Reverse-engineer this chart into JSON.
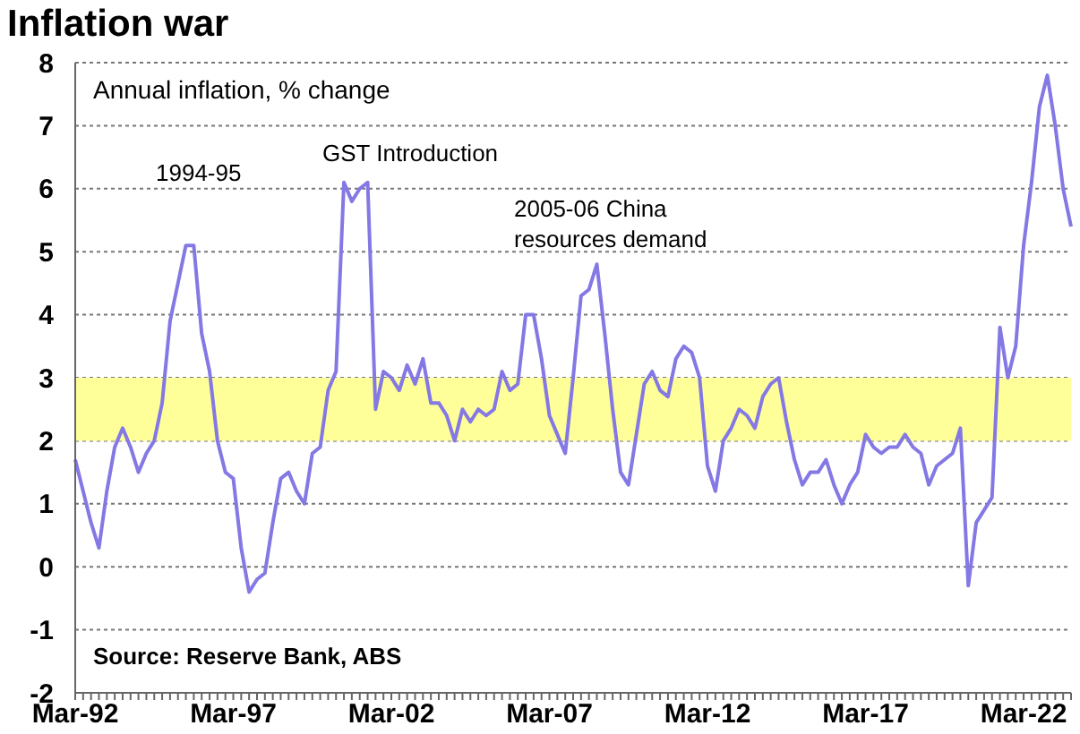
{
  "chart_data": {
    "type": "line",
    "title": "Inflation war",
    "subtitle": "Annual inflation, % change",
    "annotations": [
      "1994-95",
      "GST Introduction",
      "2005-06 China resources demand",
      "Source: Reserve Bank, ABS"
    ],
    "categories": [
      "Mar-92",
      null,
      null,
      null,
      null,
      null,
      null,
      null,
      null,
      null,
      null,
      null,
      null,
      null,
      null,
      null,
      null,
      null,
      null,
      null,
      "Mar-97",
      null,
      null,
      null,
      null,
      null,
      null,
      null,
      null,
      null,
      null,
      null,
      null,
      null,
      null,
      null,
      null,
      null,
      null,
      null,
      "Mar-02",
      null,
      null,
      null,
      null,
      null,
      null,
      null,
      null,
      null,
      null,
      null,
      null,
      null,
      null,
      null,
      null,
      null,
      null,
      null,
      "Mar-07",
      null,
      null,
      null,
      null,
      null,
      null,
      null,
      null,
      null,
      null,
      null,
      null,
      null,
      null,
      null,
      null,
      null,
      null,
      null,
      "Mar-12",
      null,
      null,
      null,
      null,
      null,
      null,
      null,
      null,
      null,
      null,
      null,
      null,
      null,
      null,
      null,
      null,
      null,
      null,
      null,
      "Mar-17",
      null,
      null,
      null,
      null,
      null,
      null,
      null,
      null,
      null,
      null,
      null,
      null,
      null,
      null,
      null,
      null,
      null,
      null,
      null,
      "Mar-22",
      null,
      null,
      null,
      null,
      null,
      null
    ],
    "series": [
      {
        "color": "#8478e4",
        "values": [
          1.7,
          1.2,
          0.7,
          0.3,
          1.2,
          1.9,
          2.2,
          1.9,
          1.5,
          1.8,
          2.0,
          2.6,
          3.9,
          4.5,
          5.1,
          5.1,
          3.7,
          3.1,
          2.0,
          1.5,
          1.4,
          0.3,
          -0.4,
          -0.2,
          -0.1,
          0.7,
          1.4,
          1.5,
          1.2,
          1.0,
          1.8,
          1.9,
          2.8,
          3.1,
          6.1,
          5.8,
          6.0,
          6.1,
          2.5,
          3.1,
          3.0,
          2.8,
          3.2,
          2.9,
          3.3,
          2.6,
          2.6,
          2.4,
          2.0,
          2.5,
          2.3,
          2.5,
          2.4,
          2.5,
          3.1,
          2.8,
          2.9,
          4.0,
          4.0,
          3.3,
          2.4,
          2.1,
          1.8,
          3.0,
          4.3,
          4.4,
          4.8,
          3.7,
          2.5,
          1.5,
          1.3,
          2.1,
          2.9,
          3.1,
          2.8,
          2.7,
          3.3,
          3.5,
          3.4,
          3.0,
          1.6,
          1.2,
          2.0,
          2.2,
          2.5,
          2.4,
          2.2,
          2.7,
          2.9,
          3.0,
          2.3,
          1.7,
          1.3,
          1.5,
          1.5,
          1.7,
          1.3,
          1.0,
          1.3,
          1.5,
          2.1,
          1.9,
          1.8,
          1.9,
          1.9,
          2.1,
          1.9,
          1.8,
          1.3,
          1.6,
          1.7,
          1.8,
          2.2,
          -0.3,
          0.7,
          0.9,
          1.1,
          3.8,
          3.0,
          3.5,
          5.1,
          6.1,
          7.3,
          7.8,
          7.0,
          6.0,
          5.4
        ]
      }
    ],
    "ylim": [
      -2,
      8
    ],
    "yticks": [
      -2,
      -1,
      0,
      1,
      2,
      3,
      4,
      5,
      6,
      7,
      8
    ],
    "grid": "y",
    "marker": "none",
    "line_style": "solid",
    "bands": [
      {
        "axis": "y",
        "from": 2,
        "to": 3,
        "color": "#ffff99"
      }
    ]
  }
}
